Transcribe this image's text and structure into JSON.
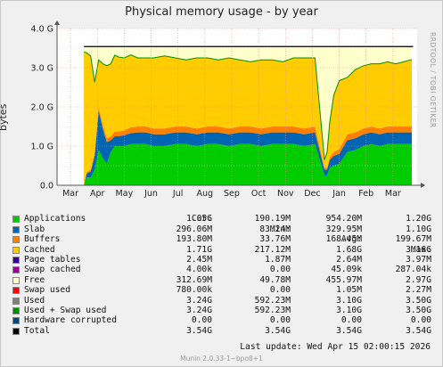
{
  "title": "Physical memory usage - by year",
  "side_text": "RRDTOOL / TOBI OETIKER",
  "footer": "Munin 2.0.33-1~bpo8+1",
  "last_update": "Last update:  Wed Apr 15 02:00:15 2026",
  "legend_header": {
    "cur": "Cur:",
    "min": "Min:",
    "avg": "Avg:",
    "max": "Max:"
  },
  "legend": [
    {
      "name": "Applications",
      "color": "#00cc00",
      "cur": "1.05G",
      "min": "190.19M",
      "avg": "954.20M",
      "max": "1.20G"
    },
    {
      "name": "Slab",
      "color": "#0066b3",
      "cur": "296.06M",
      "min": "83.24M",
      "avg": "329.95M",
      "max": "1.10G"
    },
    {
      "name": "Buffers",
      "color": "#ff8000",
      "cur": "193.80M",
      "min": "33.76M",
      "avg": "168.45M",
      "max": "199.67M"
    },
    {
      "name": "Cached",
      "color": "#ffcc00",
      "cur": "1.71G",
      "min": "217.12M",
      "avg": "1.68G",
      "max": "3.16G"
    },
    {
      "name": "Page tables",
      "color": "#330099",
      "cur": "2.45M",
      "min": "1.87M",
      "avg": "2.64M",
      "max": "3.97M"
    },
    {
      "name": "Swap cached",
      "color": "#990099",
      "cur": "4.00k",
      "min": "0.00",
      "avg": "45.09k",
      "max": "287.04k"
    },
    {
      "name": "Free",
      "color": "#ffffcc",
      "cur": "312.69M",
      "min": "49.78M",
      "avg": "455.97M",
      "max": "2.97G"
    },
    {
      "name": "Swap used",
      "color": "#ff0000",
      "cur": "780.00k",
      "min": "0.00",
      "avg": "1.05M",
      "max": "2.27M"
    },
    {
      "name": "Used",
      "color": "#808080",
      "cur": "3.24G",
      "min": "592.23M",
      "avg": "3.10G",
      "max": "3.50G"
    },
    {
      "name": "Used + Swap used",
      "color": "#008f00",
      "cur": "3.24G",
      "min": "592.23M",
      "avg": "3.10G",
      "max": "3.50G"
    },
    {
      "name": "Hardware corrupted",
      "color": "#00487d",
      "cur": "0.00",
      "min": "0.00",
      "avg": "0.00",
      "max": "0.00"
    },
    {
      "name": "Total",
      "color": "#000000",
      "cur": "3.54G",
      "min": "3.54G",
      "avg": "3.54G",
      "max": "3.54G"
    }
  ],
  "chart_data": {
    "type": "area",
    "title": "Physical memory usage - by year",
    "ylabel": "bytes",
    "ylim": [
      0,
      4.0
    ],
    "y_unit": "G",
    "y_ticks": [
      "0.0",
      "1.0 G",
      "2.0 G",
      "3.0 G",
      "4.0 G"
    ],
    "x_ticks": [
      "Mar",
      "Apr",
      "May",
      "Jun",
      "Jul",
      "Aug",
      "Sep",
      "Oct",
      "Nov",
      "Dec",
      "Jan",
      "Feb",
      "Mar"
    ],
    "xlim": [
      0,
      13.4
    ],
    "grid": true,
    "stacked": true,
    "x": [
      1.0,
      1.1,
      1.25,
      1.4,
      1.55,
      1.7,
      1.85,
      2.0,
      2.15,
      2.3,
      2.5,
      2.75,
      3.0,
      3.3,
      3.6,
      4.0,
      4.4,
      4.8,
      5.2,
      5.6,
      6.0,
      6.4,
      6.8,
      7.2,
      7.6,
      8.0,
      8.4,
      8.8,
      9.2,
      9.6,
      9.95,
      10.05,
      10.15,
      10.3,
      10.5,
      10.8,
      11.1,
      11.4,
      11.7,
      12.0,
      12.3,
      12.6,
      12.9,
      13.2
    ],
    "series": [
      {
        "name": "Applications",
        "color": "#00cc00",
        "values": [
          0.0,
          0.2,
          0.2,
          0.4,
          0.9,
          0.7,
          0.55,
          0.85,
          1.0,
          1.0,
          1.0,
          1.05,
          1.05,
          1.05,
          1.0,
          1.0,
          1.05,
          1.05,
          1.0,
          1.05,
          1.05,
          1.0,
          1.05,
          1.05,
          1.0,
          1.05,
          1.05,
          1.05,
          1.0,
          1.05,
          0.25,
          0.25,
          0.45,
          0.5,
          0.55,
          0.85,
          0.9,
          1.0,
          1.05,
          1.0,
          1.05,
          1.05,
          1.05,
          1.05
        ]
      },
      {
        "name": "Slab",
        "color": "#0066b3",
        "values": [
          0.0,
          0.1,
          0.15,
          0.35,
          1.0,
          0.75,
          0.55,
          0.3,
          0.25,
          0.25,
          0.28,
          0.28,
          0.3,
          0.3,
          0.3,
          0.3,
          0.3,
          0.3,
          0.3,
          0.3,
          0.3,
          0.3,
          0.3,
          0.3,
          0.3,
          0.3,
          0.3,
          0.3,
          0.3,
          0.3,
          0.15,
          0.15,
          0.2,
          0.25,
          0.25,
          0.3,
          0.3,
          0.3,
          0.3,
          0.3,
          0.3,
          0.3,
          0.3,
          0.3
        ]
      },
      {
        "name": "Buffers",
        "color": "#ff8000",
        "values": [
          0.0,
          0.03,
          0.05,
          0.08,
          0.1,
          0.1,
          0.1,
          0.1,
          0.12,
          0.12,
          0.12,
          0.15,
          0.15,
          0.15,
          0.15,
          0.15,
          0.15,
          0.15,
          0.15,
          0.15,
          0.15,
          0.15,
          0.15,
          0.15,
          0.15,
          0.15,
          0.15,
          0.15,
          0.15,
          0.15,
          0.05,
          0.05,
          0.07,
          0.1,
          0.12,
          0.15,
          0.15,
          0.15,
          0.15,
          0.15,
          0.15,
          0.15,
          0.15,
          0.15
        ]
      },
      {
        "name": "Cached",
        "color": "#ffcc00",
        "values": [
          3.4,
          3.05,
          2.9,
          1.8,
          1.2,
          1.55,
          1.85,
          1.85,
          1.95,
          1.9,
          1.85,
          1.85,
          1.75,
          1.75,
          1.8,
          1.85,
          1.75,
          1.7,
          1.8,
          1.75,
          1.7,
          1.8,
          1.7,
          1.65,
          1.75,
          1.7,
          1.65,
          1.75,
          1.8,
          1.75,
          0.2,
          0.4,
          0.9,
          1.45,
          1.75,
          1.45,
          1.6,
          1.6,
          1.6,
          1.65,
          1.65,
          1.6,
          1.65,
          1.71
        ]
      },
      {
        "name": "Free",
        "color": "#ffffcc",
        "values": [
          0.14,
          0.16,
          0.24,
          0.91,
          0.34,
          0.44,
          0.49,
          0.44,
          0.22,
          0.27,
          0.29,
          0.21,
          0.29,
          0.29,
          0.29,
          0.24,
          0.29,
          0.34,
          0.29,
          0.29,
          0.34,
          0.29,
          0.34,
          0.39,
          0.34,
          0.34,
          0.39,
          0.29,
          0.29,
          0.29,
          2.89,
          2.69,
          1.92,
          1.24,
          0.87,
          0.79,
          0.59,
          0.49,
          0.44,
          0.44,
          0.39,
          0.44,
          0.39,
          0.33
        ]
      }
    ],
    "total_line": {
      "name": "Total",
      "color": "#000000",
      "value": 3.54
    }
  }
}
